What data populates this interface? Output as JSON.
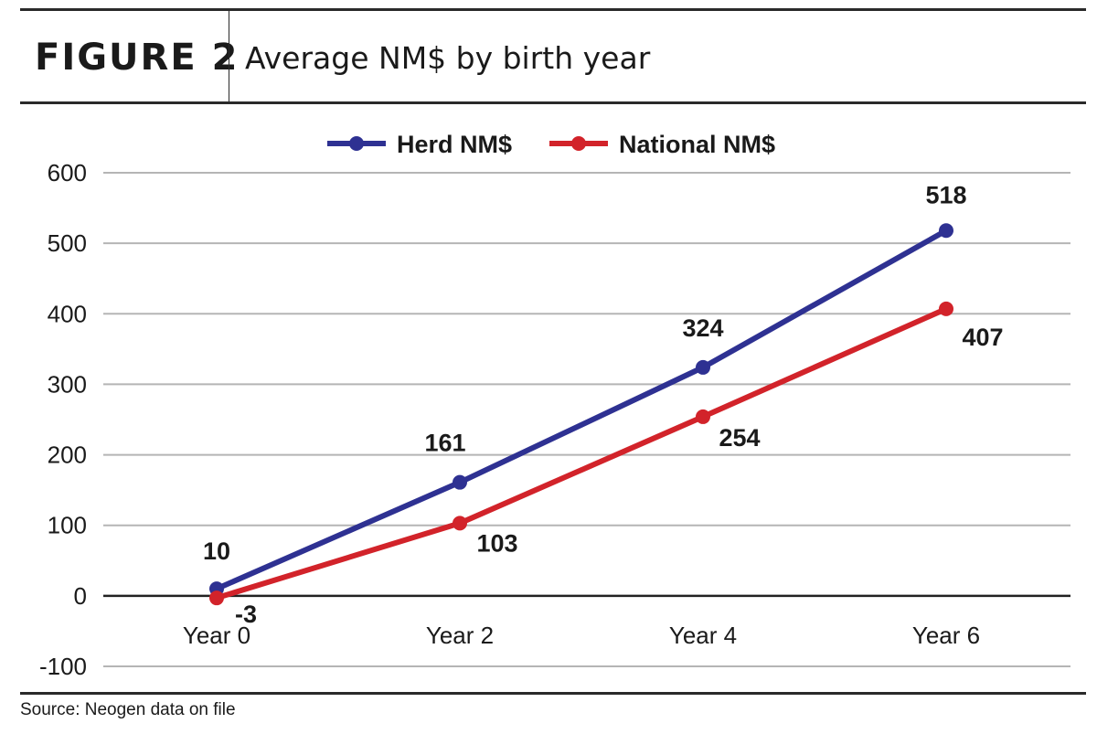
{
  "header": {
    "figure_label": "FIGURE 2",
    "title": "Average NM$ by birth year"
  },
  "source": "Source: Neogen data on file",
  "colors": {
    "herd": "#2e3192",
    "national": "#d2232a",
    "grid": "#b5b5b5",
    "zero_line": "#222222",
    "rule": "#2a2a2a"
  },
  "chart_data": {
    "type": "line",
    "categories": [
      "Year 0",
      "Year 2",
      "Year 4",
      "Year 6"
    ],
    "series": [
      {
        "name": "Herd NM$",
        "values": [
          10,
          161,
          324,
          518
        ],
        "labels": [
          "10",
          "161",
          "324",
          "518"
        ]
      },
      {
        "name": "National NM$",
        "values": [
          -3,
          103,
          254,
          407
        ],
        "labels": [
          "-3",
          "103",
          "254",
          "407"
        ]
      }
    ],
    "ylim": [
      -100,
      600
    ],
    "yticks": [
      600,
      500,
      400,
      300,
      200,
      100,
      0,
      -100
    ],
    "ytick_labels": [
      "600",
      "500",
      "400",
      "300",
      "200",
      "100",
      "0",
      "-100"
    ],
    "grid": true,
    "legend_position": "top-center"
  }
}
